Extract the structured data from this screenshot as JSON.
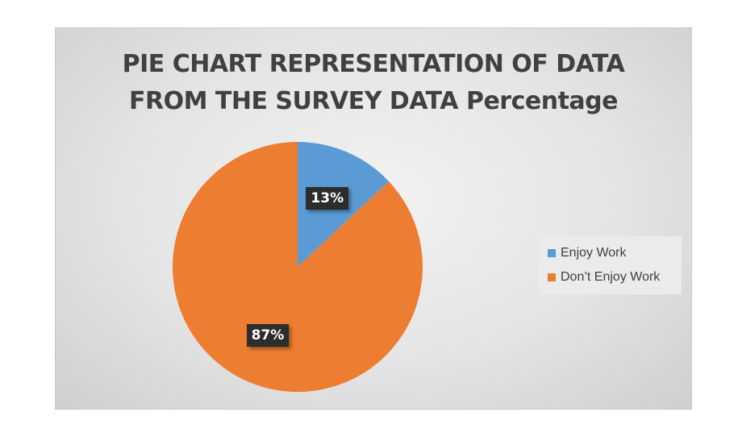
{
  "chart_data": {
    "type": "pie",
    "title_lines": [
      "PIE CHART REPRESENTATION OF DATA",
      "FROM THE SURVEY DATA Percentage"
    ],
    "categories": [
      "Enjoy Work",
      "Don’t Enjoy Work"
    ],
    "values": [
      13,
      87
    ],
    "data_labels": [
      "13%",
      "87%"
    ],
    "colors": [
      "#5b9bd5",
      "#ed7d31"
    ],
    "legend_position": "right"
  }
}
